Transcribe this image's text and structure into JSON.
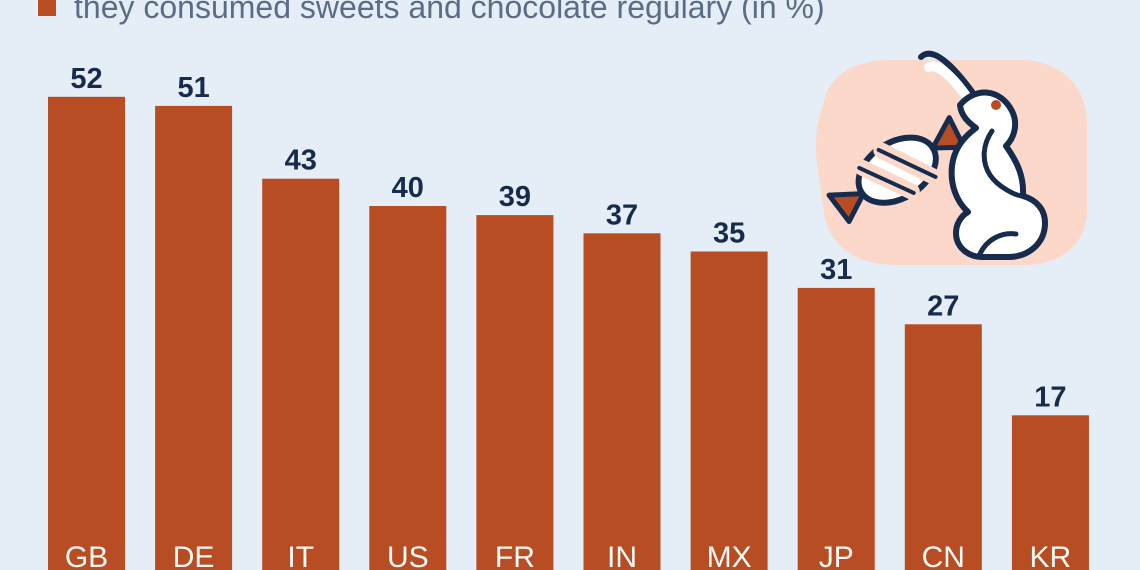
{
  "legend": {
    "label": "they consumed sweets and chocolate regulary (in %)"
  },
  "colors": {
    "background": "#e5eef6",
    "bar": "#b84c22",
    "value_label": "#172c4d",
    "category_label": "#fbfbf8",
    "legend_text": "#5b6d86",
    "icon_outline": "#172c4d",
    "icon_fill": "#ffffff",
    "icon_blob": "#fbd8c9",
    "icon_accent": "#b84c22"
  },
  "icons": {
    "illustration": "candy-chocolate-bunny-icon"
  },
  "chart_data": {
    "type": "bar",
    "title": "",
    "xlabel": "",
    "ylabel": "",
    "categories": [
      "GB",
      "DE",
      "IT",
      "US",
      "FR",
      "IN",
      "MX",
      "JP",
      "CN",
      "KR"
    ],
    "values": [
      52,
      51,
      43,
      40,
      39,
      37,
      35,
      31,
      27,
      17
    ],
    "data_labels": [
      "52",
      "51",
      "43",
      "40",
      "39",
      "37",
      "35",
      "31",
      "27",
      "17"
    ],
    "grid": false,
    "legend_position": "top-left"
  }
}
